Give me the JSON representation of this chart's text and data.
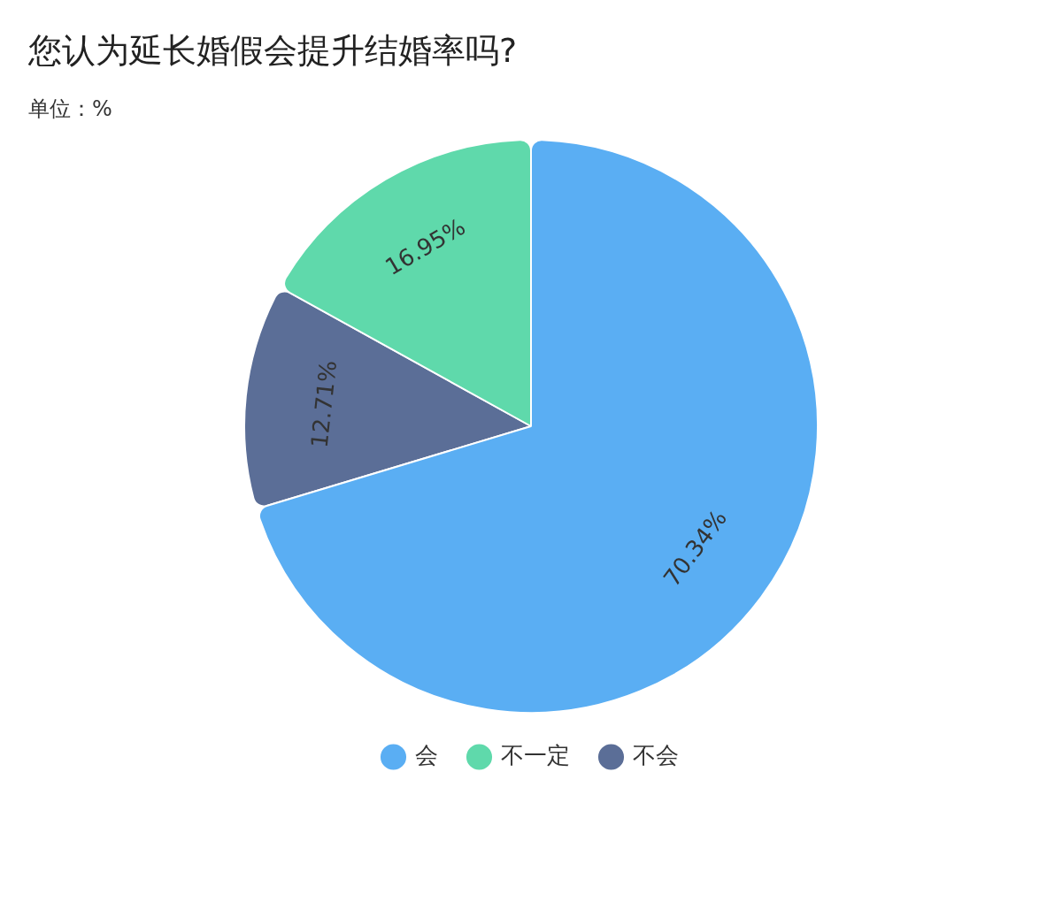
{
  "chart_data": {
    "type": "pie",
    "title": "您认为延长婚假会提升结婚率吗?",
    "subtitle": "单位：%",
    "categories": [
      "会",
      "不一定",
      "不会"
    ],
    "values": [
      70.34,
      16.95,
      12.71
    ],
    "colors": [
      "#5aaef3",
      "#5fd9ab",
      "#5b6e97"
    ],
    "value_labels": [
      "70.34%",
      "16.95%",
      "12.71%"
    ],
    "legend": "bottom"
  }
}
